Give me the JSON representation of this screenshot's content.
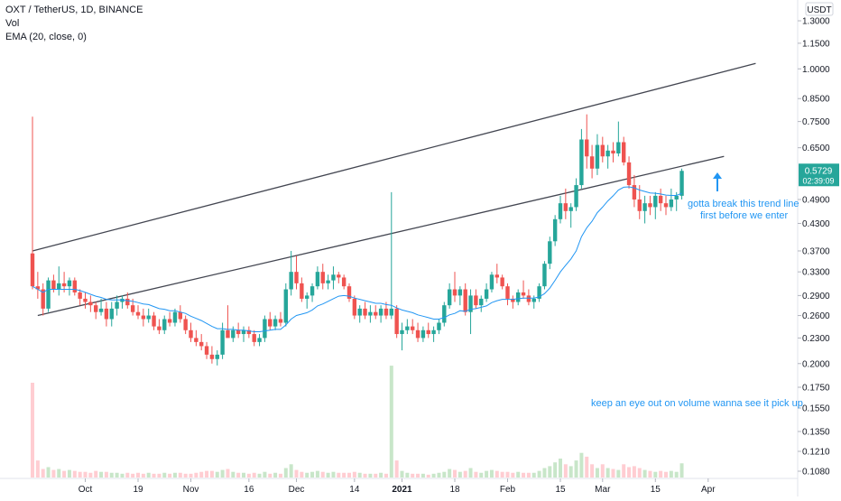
{
  "legend": {
    "symbol": "OXT / TetherUS, 1D, BINANCE",
    "volume": "Vol",
    "ema": "EMA (20, close, 0)"
  },
  "currency_badge": "USDT",
  "price_label": {
    "price": "0.5729",
    "countdown": "02:39:09"
  },
  "annotations": {
    "trend_note_line1": "gotta break this trend line",
    "trend_note_line2": "first before we enter",
    "volume_note": "keep an eye out on volume wanna see it pick up"
  },
  "colors": {
    "up": "#26a69a",
    "down": "#ef5350",
    "ema": "#2196f3",
    "trend": "#434651",
    "note": "#2196f3",
    "vol_up": "#c8e6c9",
    "vol_down": "#ffcdd2"
  },
  "chart_data": {
    "type": "candlestick",
    "scale": "log",
    "x_axis_labels": [
      "Oct",
      "19",
      "Nov",
      "16",
      "Dec",
      "14",
      "2021",
      "18",
      "Feb",
      "15",
      "Mar",
      "15",
      "Apr"
    ],
    "x_axis_label_index": [
      10,
      20,
      30,
      41,
      50,
      61,
      70,
      80,
      90,
      100,
      108,
      118,
      128
    ],
    "y_axis_labels": [
      "1.3000",
      "1.1500",
      "1.0000",
      "0.8500",
      "0.7500",
      "0.6500",
      "0.4900",
      "0.4300",
      "0.3700",
      "0.3300",
      "0.2900",
      "0.2600",
      "0.2300",
      "0.2000",
      "0.1750",
      "0.1550",
      "0.1350",
      "0.1210",
      "0.1080"
    ],
    "ylim": [
      0.193,
      1.4
    ],
    "current_price": 0.5729,
    "ohlc": [
      [
        0.365,
        0.77,
        0.3,
        0.305
      ],
      [
        0.305,
        0.33,
        0.285,
        0.3
      ],
      [
        0.3,
        0.31,
        0.26,
        0.27
      ],
      [
        0.27,
        0.32,
        0.265,
        0.315
      ],
      [
        0.315,
        0.325,
        0.295,
        0.3
      ],
      [
        0.3,
        0.34,
        0.29,
        0.31
      ],
      [
        0.31,
        0.33,
        0.295,
        0.305
      ],
      [
        0.305,
        0.32,
        0.29,
        0.315
      ],
      [
        0.315,
        0.32,
        0.29,
        0.295
      ],
      [
        0.295,
        0.3,
        0.275,
        0.285
      ],
      [
        0.285,
        0.295,
        0.27,
        0.28
      ],
      [
        0.28,
        0.29,
        0.265,
        0.275
      ],
      [
        0.275,
        0.28,
        0.255,
        0.265
      ],
      [
        0.265,
        0.285,
        0.26,
        0.27
      ],
      [
        0.27,
        0.28,
        0.245,
        0.255
      ],
      [
        0.255,
        0.28,
        0.245,
        0.27
      ],
      [
        0.27,
        0.29,
        0.26,
        0.28
      ],
      [
        0.28,
        0.29,
        0.27,
        0.285
      ],
      [
        0.285,
        0.295,
        0.27,
        0.275
      ],
      [
        0.275,
        0.285,
        0.26,
        0.265
      ],
      [
        0.265,
        0.275,
        0.255,
        0.26
      ],
      [
        0.26,
        0.27,
        0.245,
        0.255
      ],
      [
        0.255,
        0.27,
        0.25,
        0.26
      ],
      [
        0.26,
        0.265,
        0.24,
        0.245
      ],
      [
        0.245,
        0.255,
        0.235,
        0.24
      ],
      [
        0.24,
        0.26,
        0.235,
        0.255
      ],
      [
        0.255,
        0.265,
        0.245,
        0.25
      ],
      [
        0.25,
        0.27,
        0.245,
        0.265
      ],
      [
        0.265,
        0.275,
        0.25,
        0.255
      ],
      [
        0.255,
        0.26,
        0.235,
        0.24
      ],
      [
        0.24,
        0.25,
        0.225,
        0.23
      ],
      [
        0.23,
        0.24,
        0.22,
        0.225
      ],
      [
        0.225,
        0.235,
        0.215,
        0.22
      ],
      [
        0.22,
        0.225,
        0.205,
        0.21
      ],
      [
        0.21,
        0.22,
        0.2,
        0.205
      ],
      [
        0.205,
        0.215,
        0.198,
        0.21
      ],
      [
        0.21,
        0.25,
        0.205,
        0.24
      ],
      [
        0.24,
        0.275,
        0.235,
        0.23
      ],
      [
        0.23,
        0.245,
        0.225,
        0.24
      ],
      [
        0.24,
        0.25,
        0.23,
        0.235
      ],
      [
        0.235,
        0.245,
        0.225,
        0.24
      ],
      [
        0.24,
        0.245,
        0.23,
        0.235
      ],
      [
        0.235,
        0.24,
        0.22,
        0.225
      ],
      [
        0.225,
        0.235,
        0.22,
        0.23
      ],
      [
        0.23,
        0.26,
        0.225,
        0.255
      ],
      [
        0.255,
        0.265,
        0.24,
        0.245
      ],
      [
        0.245,
        0.26,
        0.24,
        0.255
      ],
      [
        0.255,
        0.265,
        0.245,
        0.25
      ],
      [
        0.25,
        0.31,
        0.245,
        0.3
      ],
      [
        0.3,
        0.37,
        0.29,
        0.33
      ],
      [
        0.33,
        0.36,
        0.3,
        0.31
      ],
      [
        0.31,
        0.32,
        0.28,
        0.285
      ],
      [
        0.285,
        0.295,
        0.27,
        0.29
      ],
      [
        0.29,
        0.31,
        0.28,
        0.305
      ],
      [
        0.305,
        0.34,
        0.3,
        0.33
      ],
      [
        0.33,
        0.345,
        0.3,
        0.31
      ],
      [
        0.31,
        0.325,
        0.3,
        0.315
      ],
      [
        0.315,
        0.34,
        0.3,
        0.325
      ],
      [
        0.325,
        0.33,
        0.31,
        0.32
      ],
      [
        0.32,
        0.325,
        0.3,
        0.305
      ],
      [
        0.305,
        0.31,
        0.28,
        0.285
      ],
      [
        0.285,
        0.29,
        0.255,
        0.26
      ],
      [
        0.26,
        0.275,
        0.25,
        0.27
      ],
      [
        0.27,
        0.28,
        0.255,
        0.26
      ],
      [
        0.26,
        0.275,
        0.25,
        0.265
      ],
      [
        0.265,
        0.275,
        0.255,
        0.26
      ],
      [
        0.26,
        0.275,
        0.25,
        0.27
      ],
      [
        0.27,
        0.28,
        0.255,
        0.26
      ],
      [
        0.26,
        0.51,
        0.255,
        0.27
      ],
      [
        0.27,
        0.275,
        0.23,
        0.235
      ],
      [
        0.235,
        0.25,
        0.215,
        0.24
      ],
      [
        0.24,
        0.255,
        0.235,
        0.245
      ],
      [
        0.245,
        0.255,
        0.235,
        0.24
      ],
      [
        0.24,
        0.25,
        0.225,
        0.23
      ],
      [
        0.23,
        0.245,
        0.225,
        0.24
      ],
      [
        0.24,
        0.25,
        0.23,
        0.235
      ],
      [
        0.235,
        0.245,
        0.225,
        0.24
      ],
      [
        0.24,
        0.255,
        0.235,
        0.25
      ],
      [
        0.25,
        0.28,
        0.245,
        0.275
      ],
      [
        0.275,
        0.31,
        0.27,
        0.3
      ],
      [
        0.3,
        0.33,
        0.28,
        0.29
      ],
      [
        0.29,
        0.305,
        0.275,
        0.3
      ],
      [
        0.3,
        0.31,
        0.26,
        0.265
      ],
      [
        0.265,
        0.3,
        0.235,
        0.29
      ],
      [
        0.29,
        0.3,
        0.27,
        0.275
      ],
      [
        0.275,
        0.29,
        0.265,
        0.285
      ],
      [
        0.285,
        0.31,
        0.28,
        0.3
      ],
      [
        0.3,
        0.33,
        0.295,
        0.325
      ],
      [
        0.325,
        0.345,
        0.31,
        0.32
      ],
      [
        0.32,
        0.325,
        0.3,
        0.305
      ],
      [
        0.305,
        0.31,
        0.275,
        0.285
      ],
      [
        0.285,
        0.29,
        0.27,
        0.28
      ],
      [
        0.28,
        0.3,
        0.275,
        0.295
      ],
      [
        0.295,
        0.315,
        0.285,
        0.29
      ],
      [
        0.29,
        0.3,
        0.275,
        0.28
      ],
      [
        0.28,
        0.29,
        0.27,
        0.285
      ],
      [
        0.285,
        0.31,
        0.28,
        0.305
      ],
      [
        0.305,
        0.35,
        0.3,
        0.345
      ],
      [
        0.345,
        0.4,
        0.335,
        0.39
      ],
      [
        0.39,
        0.45,
        0.38,
        0.44
      ],
      [
        0.44,
        0.5,
        0.43,
        0.48
      ],
      [
        0.48,
        0.52,
        0.44,
        0.46
      ],
      [
        0.46,
        0.48,
        0.42,
        0.47
      ],
      [
        0.47,
        0.55,
        0.46,
        0.53
      ],
      [
        0.53,
        0.72,
        0.52,
        0.68
      ],
      [
        0.68,
        0.78,
        0.58,
        0.62
      ],
      [
        0.62,
        0.66,
        0.55,
        0.58
      ],
      [
        0.58,
        0.7,
        0.56,
        0.66
      ],
      [
        0.66,
        0.69,
        0.6,
        0.62
      ],
      [
        0.62,
        0.66,
        0.58,
        0.64
      ],
      [
        0.64,
        0.67,
        0.6,
        0.63
      ],
      [
        0.63,
        0.75,
        0.62,
        0.67
      ],
      [
        0.67,
        0.69,
        0.59,
        0.6
      ],
      [
        0.6,
        0.62,
        0.52,
        0.53
      ],
      [
        0.53,
        0.56,
        0.47,
        0.49
      ],
      [
        0.49,
        0.53,
        0.44,
        0.46
      ],
      [
        0.46,
        0.5,
        0.43,
        0.48
      ],
      [
        0.48,
        0.5,
        0.45,
        0.47
      ],
      [
        0.47,
        0.51,
        0.44,
        0.5
      ],
      [
        0.5,
        0.52,
        0.46,
        0.48
      ],
      [
        0.48,
        0.5,
        0.45,
        0.47
      ],
      [
        0.47,
        0.52,
        0.46,
        0.49
      ],
      [
        0.49,
        0.51,
        0.46,
        0.5
      ],
      [
        0.5,
        0.58,
        0.49,
        0.5729
      ]
    ],
    "ema": [
      0.305,
      0.3,
      0.295,
      0.3,
      0.3,
      0.3,
      0.3,
      0.3,
      0.3,
      0.298,
      0.295,
      0.292,
      0.289,
      0.287,
      0.284,
      0.283,
      0.283,
      0.283,
      0.282,
      0.281,
      0.279,
      0.277,
      0.276,
      0.273,
      0.27,
      0.269,
      0.267,
      0.267,
      0.265,
      0.263,
      0.259,
      0.256,
      0.253,
      0.249,
      0.245,
      0.242,
      0.242,
      0.241,
      0.241,
      0.24,
      0.24,
      0.239,
      0.238,
      0.238,
      0.239,
      0.24,
      0.241,
      0.241,
      0.247,
      0.255,
      0.26,
      0.262,
      0.264,
      0.268,
      0.274,
      0.277,
      0.281,
      0.285,
      0.289,
      0.29,
      0.289,
      0.286,
      0.284,
      0.282,
      0.28,
      0.278,
      0.278,
      0.276,
      0.275,
      0.271,
      0.268,
      0.266,
      0.264,
      0.261,
      0.259,
      0.257,
      0.255,
      0.255,
      0.257,
      0.261,
      0.263,
      0.267,
      0.266,
      0.269,
      0.27,
      0.272,
      0.274,
      0.279,
      0.282,
      0.284,
      0.284,
      0.284,
      0.285,
      0.286,
      0.286,
      0.286,
      0.288,
      0.293,
      0.302,
      0.315,
      0.33,
      0.342,
      0.354,
      0.37,
      0.4,
      0.42,
      0.435,
      0.456,
      0.47,
      0.486,
      0.5,
      0.516,
      0.524,
      0.525,
      0.522,
      0.516,
      0.512,
      0.508,
      0.507,
      0.505,
      0.502,
      0.501,
      0.501,
      0.507
    ],
    "volume": [
      1.0,
      0.18,
      0.09,
      0.11,
      0.08,
      0.09,
      0.07,
      0.08,
      0.07,
      0.06,
      0.06,
      0.05,
      0.07,
      0.06,
      0.06,
      0.05,
      0.05,
      0.04,
      0.05,
      0.04,
      0.05,
      0.04,
      0.05,
      0.04,
      0.04,
      0.05,
      0.04,
      0.05,
      0.05,
      0.04,
      0.04,
      0.05,
      0.06,
      0.07,
      0.07,
      0.06,
      0.08,
      0.09,
      0.06,
      0.05,
      0.05,
      0.04,
      0.05,
      0.04,
      0.06,
      0.04,
      0.05,
      0.04,
      0.1,
      0.14,
      0.08,
      0.06,
      0.05,
      0.06,
      0.07,
      0.06,
      0.05,
      0.06,
      0.05,
      0.05,
      0.05,
      0.06,
      0.05,
      0.04,
      0.04,
      0.04,
      0.05,
      0.04,
      1.18,
      0.18,
      0.07,
      0.05,
      0.04,
      0.04,
      0.04,
      0.03,
      0.04,
      0.05,
      0.06,
      0.09,
      0.08,
      0.06,
      0.07,
      0.1,
      0.06,
      0.05,
      0.07,
      0.08,
      0.07,
      0.06,
      0.06,
      0.05,
      0.06,
      0.05,
      0.05,
      0.05,
      0.07,
      0.1,
      0.12,
      0.16,
      0.2,
      0.14,
      0.12,
      0.18,
      0.26,
      0.22,
      0.14,
      0.1,
      0.14,
      0.1,
      0.09,
      0.08,
      0.14,
      0.11,
      0.12,
      0.1,
      0.08,
      0.07,
      0.06,
      0.07,
      0.06,
      0.07,
      0.06,
      0.15
    ],
    "trendlines": [
      {
        "name": "upper",
        "from": [
          0,
          0.37
        ],
        "to": [
          137,
          1.03
        ]
      },
      {
        "name": "lower",
        "from": [
          1,
          0.26
        ],
        "to": [
          131,
          0.62
        ]
      }
    ]
  }
}
